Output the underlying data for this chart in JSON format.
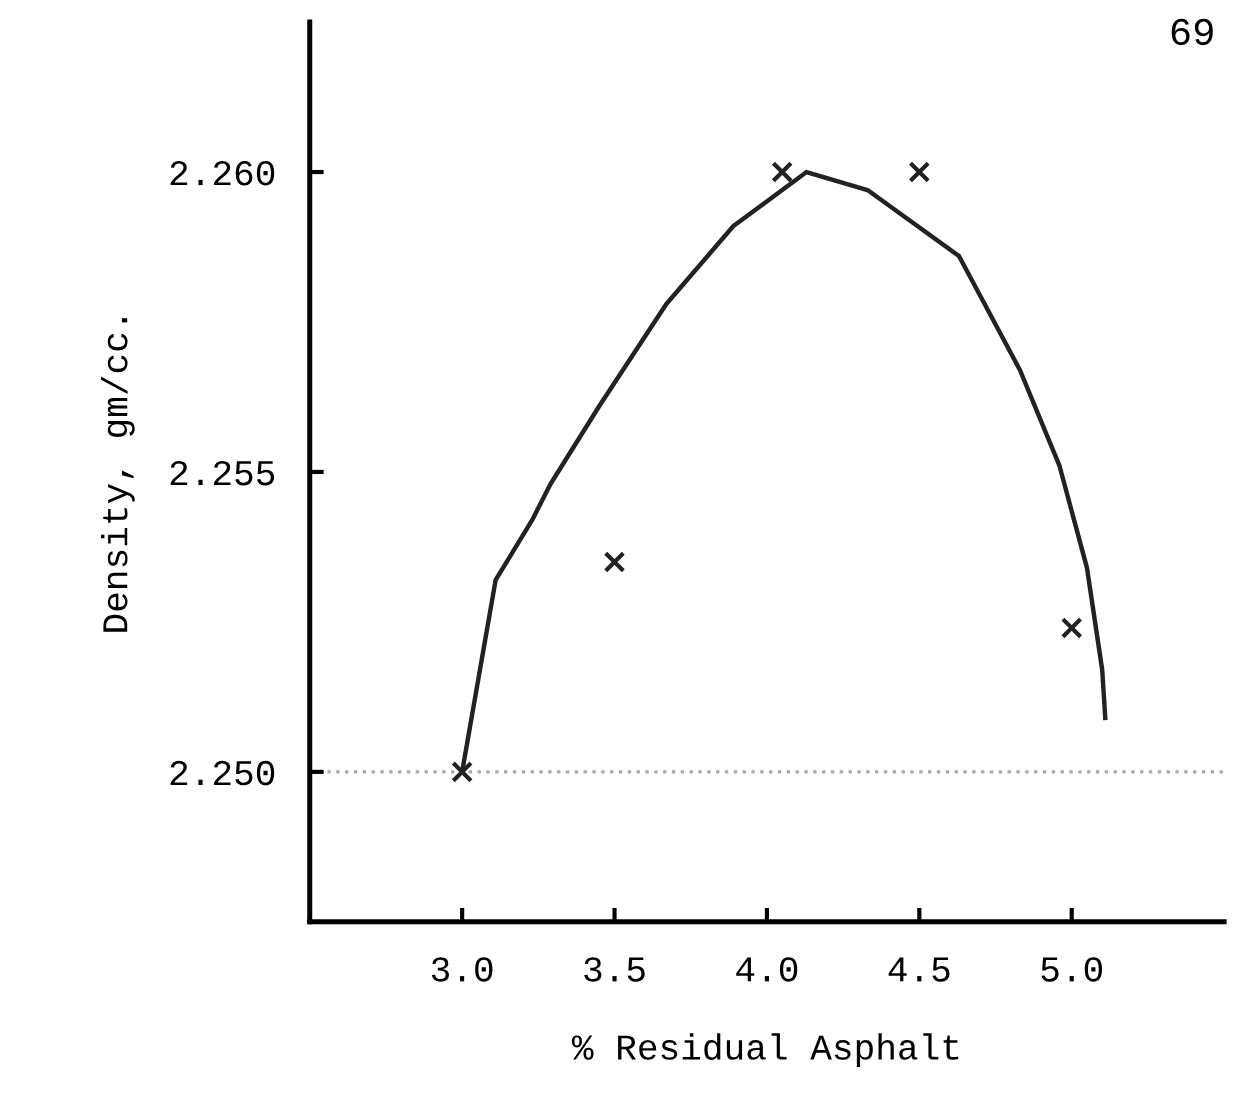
{
  "chart_data": {
    "type": "scatter",
    "xlabel": "% Residual Asphalt",
    "ylabel": "Density, gm/cc.",
    "annotations": [
      "69"
    ],
    "xlim": [
      2.5,
      5.5
    ],
    "ylim": [
      2.2475,
      2.2625
    ],
    "xticks": [
      {
        "value": 3.0,
        "label": "3.0"
      },
      {
        "value": 3.5,
        "label": "3.5"
      },
      {
        "value": 4.0,
        "label": "4.0"
      },
      {
        "value": 4.5,
        "label": "4.5"
      },
      {
        "value": 5.0,
        "label": "5.0"
      }
    ],
    "yticks": [
      {
        "value": 2.25,
        "label": "2.250"
      },
      {
        "value": 2.255,
        "label": "2.255"
      },
      {
        "value": 2.26,
        "label": "2.260"
      }
    ],
    "grid": false,
    "legend": false,
    "ref_lines": [
      {
        "axis": "y",
        "value": 2.25,
        "color": "#aaaaaa",
        "line_style": "dotted"
      }
    ],
    "series": [
      {
        "color": "#222222",
        "marker": "cross",
        "x": [
          3.0,
          3.5,
          4.05,
          4.5,
          5.0
        ],
        "values": [
          2.25,
          2.2535,
          2.26,
          2.26,
          2.2524
        ]
      },
      {
        "type": "line",
        "color": "#222222",
        "marker": "none",
        "line_style": "solid",
        "x": [
          3.0,
          3.11,
          3.23,
          3.29,
          3.45,
          3.67,
          3.89,
          4.13,
          4.33,
          4.63,
          4.83,
          4.96,
          5.05,
          5.1,
          5.11
        ],
        "values": [
          2.25,
          2.2532,
          2.2542,
          2.2548,
          2.2561,
          2.2578,
          2.2591,
          2.26,
          2.2597,
          2.2586,
          2.2567,
          2.2551,
          2.2534,
          2.2517,
          2.2509
        ]
      }
    ]
  }
}
